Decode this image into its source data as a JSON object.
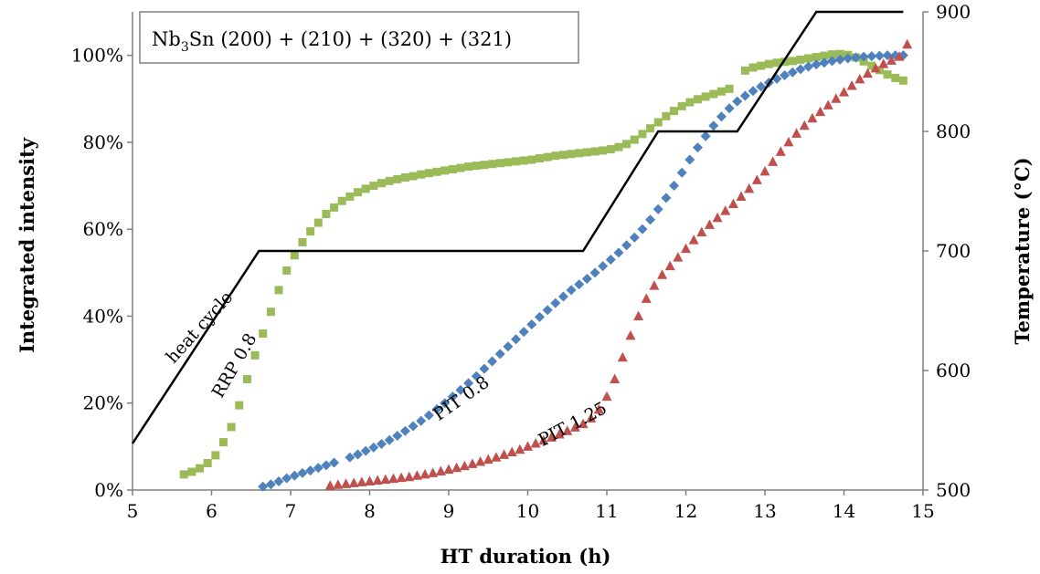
{
  "chart_data": {
    "type": "scatter",
    "title": {
      "prefix": "Nb",
      "subscript": "3",
      "suffix": "Sn (200) + (210) + (320) + (321)"
    },
    "xlabel": "HT duration (h)",
    "ylabel": "Integrated intensity",
    "y2label": "Temperature (°C)",
    "xlim": [
      5,
      15
    ],
    "ylim": [
      0,
      110
    ],
    "y2lim": [
      500,
      900
    ],
    "x_ticks": [
      "5",
      "6",
      "7",
      "8",
      "9",
      "10",
      "11",
      "12",
      "13",
      "14",
      "15"
    ],
    "y_ticks": [
      "0%",
      "20%",
      "40%",
      "60%",
      "80%",
      "100%"
    ],
    "y2_ticks": [
      "500",
      "600",
      "700",
      "800",
      "900"
    ],
    "grid": false,
    "legend": "none",
    "series": [
      {
        "name": "RRP 0.8",
        "marker": "square",
        "color": "#9BBB59",
        "points": [
          [
            5.65,
            3.6
          ],
          [
            5.75,
            4.2
          ],
          [
            5.85,
            5
          ],
          [
            5.95,
            6.2
          ],
          [
            6.05,
            8
          ],
          [
            6.15,
            11
          ],
          [
            6.25,
            14.5
          ],
          [
            6.35,
            19.5
          ],
          [
            6.45,
            25.5
          ],
          [
            6.55,
            31
          ],
          [
            6.65,
            36
          ],
          [
            6.75,
            41
          ],
          [
            6.85,
            46
          ],
          [
            6.95,
            50.5
          ],
          [
            7.05,
            54
          ],
          [
            7.15,
            57
          ],
          [
            7.25,
            59.5
          ],
          [
            7.35,
            61.5
          ],
          [
            7.45,
            63.5
          ],
          [
            7.55,
            65
          ],
          [
            7.65,
            66.5
          ],
          [
            7.75,
            67.5
          ],
          [
            7.85,
            68.5
          ],
          [
            7.95,
            69.3
          ],
          [
            8.05,
            70
          ],
          [
            8.15,
            70.6
          ],
          [
            8.25,
            71.1
          ],
          [
            8.35,
            71.5
          ],
          [
            8.45,
            71.9
          ],
          [
            8.55,
            72.2
          ],
          [
            8.65,
            72.6
          ],
          [
            8.75,
            72.9
          ],
          [
            8.85,
            73.2
          ],
          [
            8.95,
            73.5
          ],
          [
            9.05,
            73.8
          ],
          [
            9.15,
            74.1
          ],
          [
            9.25,
            74.4
          ],
          [
            9.35,
            74.6
          ],
          [
            9.45,
            74.8
          ],
          [
            9.55,
            75
          ],
          [
            9.65,
            75.2
          ],
          [
            9.75,
            75.4
          ],
          [
            9.85,
            75.6
          ],
          [
            9.95,
            75.8
          ],
          [
            10.05,
            76
          ],
          [
            10.15,
            76.3
          ],
          [
            10.25,
            76.6
          ],
          [
            10.35,
            76.9
          ],
          [
            10.45,
            77.1
          ],
          [
            10.55,
            77.3
          ],
          [
            10.65,
            77.5
          ],
          [
            10.75,
            77.7
          ],
          [
            10.85,
            77.9
          ],
          [
            10.95,
            78.1
          ],
          [
            11.05,
            78.4
          ],
          [
            11.15,
            78.9
          ],
          [
            11.25,
            79.6
          ],
          [
            11.35,
            80.6
          ],
          [
            11.45,
            81.9
          ],
          [
            11.55,
            83.2
          ],
          [
            11.65,
            84.6
          ],
          [
            11.75,
            86
          ],
          [
            11.85,
            87.2
          ],
          [
            11.95,
            88.3
          ],
          [
            12.05,
            89.2
          ],
          [
            12.15,
            89.9
          ],
          [
            12.25,
            90.5
          ],
          [
            12.35,
            91.1
          ],
          [
            12.45,
            91.7
          ],
          [
            12.55,
            92.3
          ],
          [
            12.75,
            96.5
          ],
          [
            12.85,
            97.2
          ],
          [
            12.95,
            97.6
          ],
          [
            13.05,
            98
          ],
          [
            13.15,
            98.3
          ],
          [
            13.25,
            98.5
          ],
          [
            13.35,
            98.7
          ],
          [
            13.45,
            99
          ],
          [
            13.55,
            99.3
          ],
          [
            13.65,
            99.6
          ],
          [
            13.75,
            99.9
          ],
          [
            13.85,
            100.2
          ],
          [
            13.95,
            100.3
          ],
          [
            14.05,
            100.1
          ],
          [
            14.15,
            99.5
          ],
          [
            14.25,
            98.6
          ],
          [
            14.35,
            97.6
          ],
          [
            14.45,
            96.6
          ],
          [
            14.55,
            95.6
          ],
          [
            14.65,
            94.8
          ],
          [
            14.75,
            94.2
          ]
        ]
      },
      {
        "name": "PIT 0.8",
        "marker": "diamond",
        "color": "#4F81BD",
        "points": [
          [
            6.65,
            0.8
          ],
          [
            6.75,
            1.3
          ],
          [
            6.85,
            2
          ],
          [
            6.95,
            2.7
          ],
          [
            7.05,
            3.3
          ],
          [
            7.15,
            3.9
          ],
          [
            7.25,
            4.5
          ],
          [
            7.35,
            5.1
          ],
          [
            7.45,
            5.7
          ],
          [
            7.55,
            6.3
          ],
          [
            7.75,
            7.5
          ],
          [
            7.85,
            8.2
          ],
          [
            7.95,
            9
          ],
          [
            8.05,
            9.8
          ],
          [
            8.15,
            10.6
          ],
          [
            8.25,
            11.5
          ],
          [
            8.35,
            12.5
          ],
          [
            8.45,
            13.6
          ],
          [
            8.55,
            14.7
          ],
          [
            8.65,
            15.9
          ],
          [
            8.75,
            17.2
          ],
          [
            8.85,
            18.6
          ],
          [
            8.95,
            20
          ],
          [
            9.05,
            21.5
          ],
          [
            9.15,
            23
          ],
          [
            9.25,
            24.6
          ],
          [
            9.35,
            26.2
          ],
          [
            9.45,
            27.9
          ],
          [
            9.55,
            29.6
          ],
          [
            9.65,
            31.3
          ],
          [
            9.75,
            33
          ],
          [
            9.85,
            34.7
          ],
          [
            9.95,
            36.4
          ],
          [
            10.05,
            38.1
          ],
          [
            10.15,
            39.8
          ],
          [
            10.25,
            41.4
          ],
          [
            10.35,
            43
          ],
          [
            10.45,
            44.5
          ],
          [
            10.55,
            46
          ],
          [
            10.65,
            47.3
          ],
          [
            10.75,
            48.6
          ],
          [
            10.85,
            50
          ],
          [
            10.95,
            51.5
          ],
          [
            11.05,
            53
          ],
          [
            11.15,
            54.6
          ],
          [
            11.25,
            56.3
          ],
          [
            11.35,
            58.1
          ],
          [
            11.45,
            60
          ],
          [
            11.55,
            62.2
          ],
          [
            11.65,
            64.6
          ],
          [
            11.75,
            67.2
          ],
          [
            11.85,
            70
          ],
          [
            11.95,
            73
          ],
          [
            12.05,
            76
          ],
          [
            12.15,
            78.8
          ],
          [
            12.25,
            81.4
          ],
          [
            12.35,
            83.8
          ],
          [
            12.45,
            85.9
          ],
          [
            12.55,
            87.8
          ],
          [
            12.65,
            89.4
          ],
          [
            12.75,
            90.7
          ],
          [
            12.85,
            91.8
          ],
          [
            12.95,
            92.8
          ],
          [
            13.05,
            93.7
          ],
          [
            13.15,
            94.6
          ],
          [
            13.25,
            95.4
          ],
          [
            13.35,
            96.1
          ],
          [
            13.45,
            96.8
          ],
          [
            13.55,
            97.4
          ],
          [
            13.65,
            97.9
          ],
          [
            13.75,
            98.3
          ],
          [
            13.85,
            98.7
          ],
          [
            13.95,
            99
          ],
          [
            14.05,
            99.3
          ],
          [
            14.15,
            99.5
          ],
          [
            14.25,
            99.7
          ],
          [
            14.35,
            99.8
          ],
          [
            14.45,
            99.9
          ],
          [
            14.55,
            100
          ],
          [
            14.65,
            100
          ],
          [
            14.75,
            100
          ]
        ]
      },
      {
        "name": "PIT 1.25",
        "marker": "triangle",
        "color": "#C0504D",
        "points": [
          [
            7.5,
            1
          ],
          [
            7.6,
            1.2
          ],
          [
            7.7,
            1.4
          ],
          [
            7.8,
            1.6
          ],
          [
            7.9,
            1.8
          ],
          [
            8.0,
            2
          ],
          [
            8.1,
            2.2
          ],
          [
            8.2,
            2.4
          ],
          [
            8.3,
            2.6
          ],
          [
            8.4,
            2.8
          ],
          [
            8.5,
            3
          ],
          [
            8.6,
            3.3
          ],
          [
            8.7,
            3.6
          ],
          [
            8.8,
            3.9
          ],
          [
            8.9,
            4.3
          ],
          [
            9.0,
            4.7
          ],
          [
            9.1,
            5.1
          ],
          [
            9.2,
            5.5
          ],
          [
            9.3,
            6
          ],
          [
            9.4,
            6.5
          ],
          [
            9.5,
            7
          ],
          [
            9.6,
            7.5
          ],
          [
            9.7,
            8.1
          ],
          [
            9.8,
            8.7
          ],
          [
            9.9,
            9.3
          ],
          [
            10.0,
            10
          ],
          [
            10.1,
            10.7
          ],
          [
            10.2,
            11.4
          ],
          [
            10.3,
            12.1
          ],
          [
            10.4,
            12.8
          ],
          [
            10.5,
            13.6
          ],
          [
            10.6,
            14.4
          ],
          [
            10.7,
            15.2
          ],
          [
            10.8,
            16.5
          ],
          [
            10.9,
            18.5
          ],
          [
            11.0,
            21.5
          ],
          [
            11.1,
            25.5
          ],
          [
            11.2,
            30.5
          ],
          [
            11.3,
            35.5
          ],
          [
            11.4,
            40
          ],
          [
            11.5,
            44
          ],
          [
            11.6,
            47
          ],
          [
            11.7,
            49.5
          ],
          [
            11.8,
            51.5
          ],
          [
            11.9,
            53.5
          ],
          [
            12.0,
            55.5
          ],
          [
            12.1,
            57.5
          ],
          [
            12.2,
            59.3
          ],
          [
            12.3,
            61
          ],
          [
            12.4,
            62.6
          ],
          [
            12.5,
            64.2
          ],
          [
            12.6,
            65.8
          ],
          [
            12.7,
            67.5
          ],
          [
            12.8,
            69.3
          ],
          [
            12.9,
            71.3
          ],
          [
            13.0,
            73.3
          ],
          [
            13.1,
            75.5
          ],
          [
            13.2,
            77.8
          ],
          [
            13.3,
            80
          ],
          [
            13.4,
            82
          ],
          [
            13.5,
            83.8
          ],
          [
            13.6,
            85.5
          ],
          [
            13.7,
            87
          ],
          [
            13.8,
            88.5
          ],
          [
            13.9,
            90
          ],
          [
            14.0,
            91.5
          ],
          [
            14.1,
            93
          ],
          [
            14.2,
            94.5
          ],
          [
            14.3,
            95.8
          ],
          [
            14.4,
            97
          ],
          [
            14.5,
            98
          ],
          [
            14.6,
            98.8
          ],
          [
            14.7,
            99.7
          ],
          [
            14.8,
            102.5
          ]
        ]
      },
      {
        "name": "heat cycle",
        "axis": "right",
        "type": "line",
        "color": "#000000",
        "points": [
          [
            5.0,
            539
          ],
          [
            6.6,
            700
          ],
          [
            10.7,
            700
          ],
          [
            11.65,
            800
          ],
          [
            12.65,
            800
          ],
          [
            13.65,
            900
          ],
          [
            14.75,
            900
          ]
        ]
      }
    ],
    "annotations": [
      {
        "text": "heat cycle",
        "x": 5.9,
        "y2": 633,
        "angle": -48
      },
      {
        "text": "RRP 0.8",
        "x": 6.35,
        "y": 28,
        "angle": -60
      },
      {
        "text": "PIT 0.8",
        "x": 9.2,
        "y": 20,
        "angle": -35
      },
      {
        "text": "PIT 1.25",
        "x": 10.6,
        "y": 14,
        "angle": -28
      }
    ]
  }
}
